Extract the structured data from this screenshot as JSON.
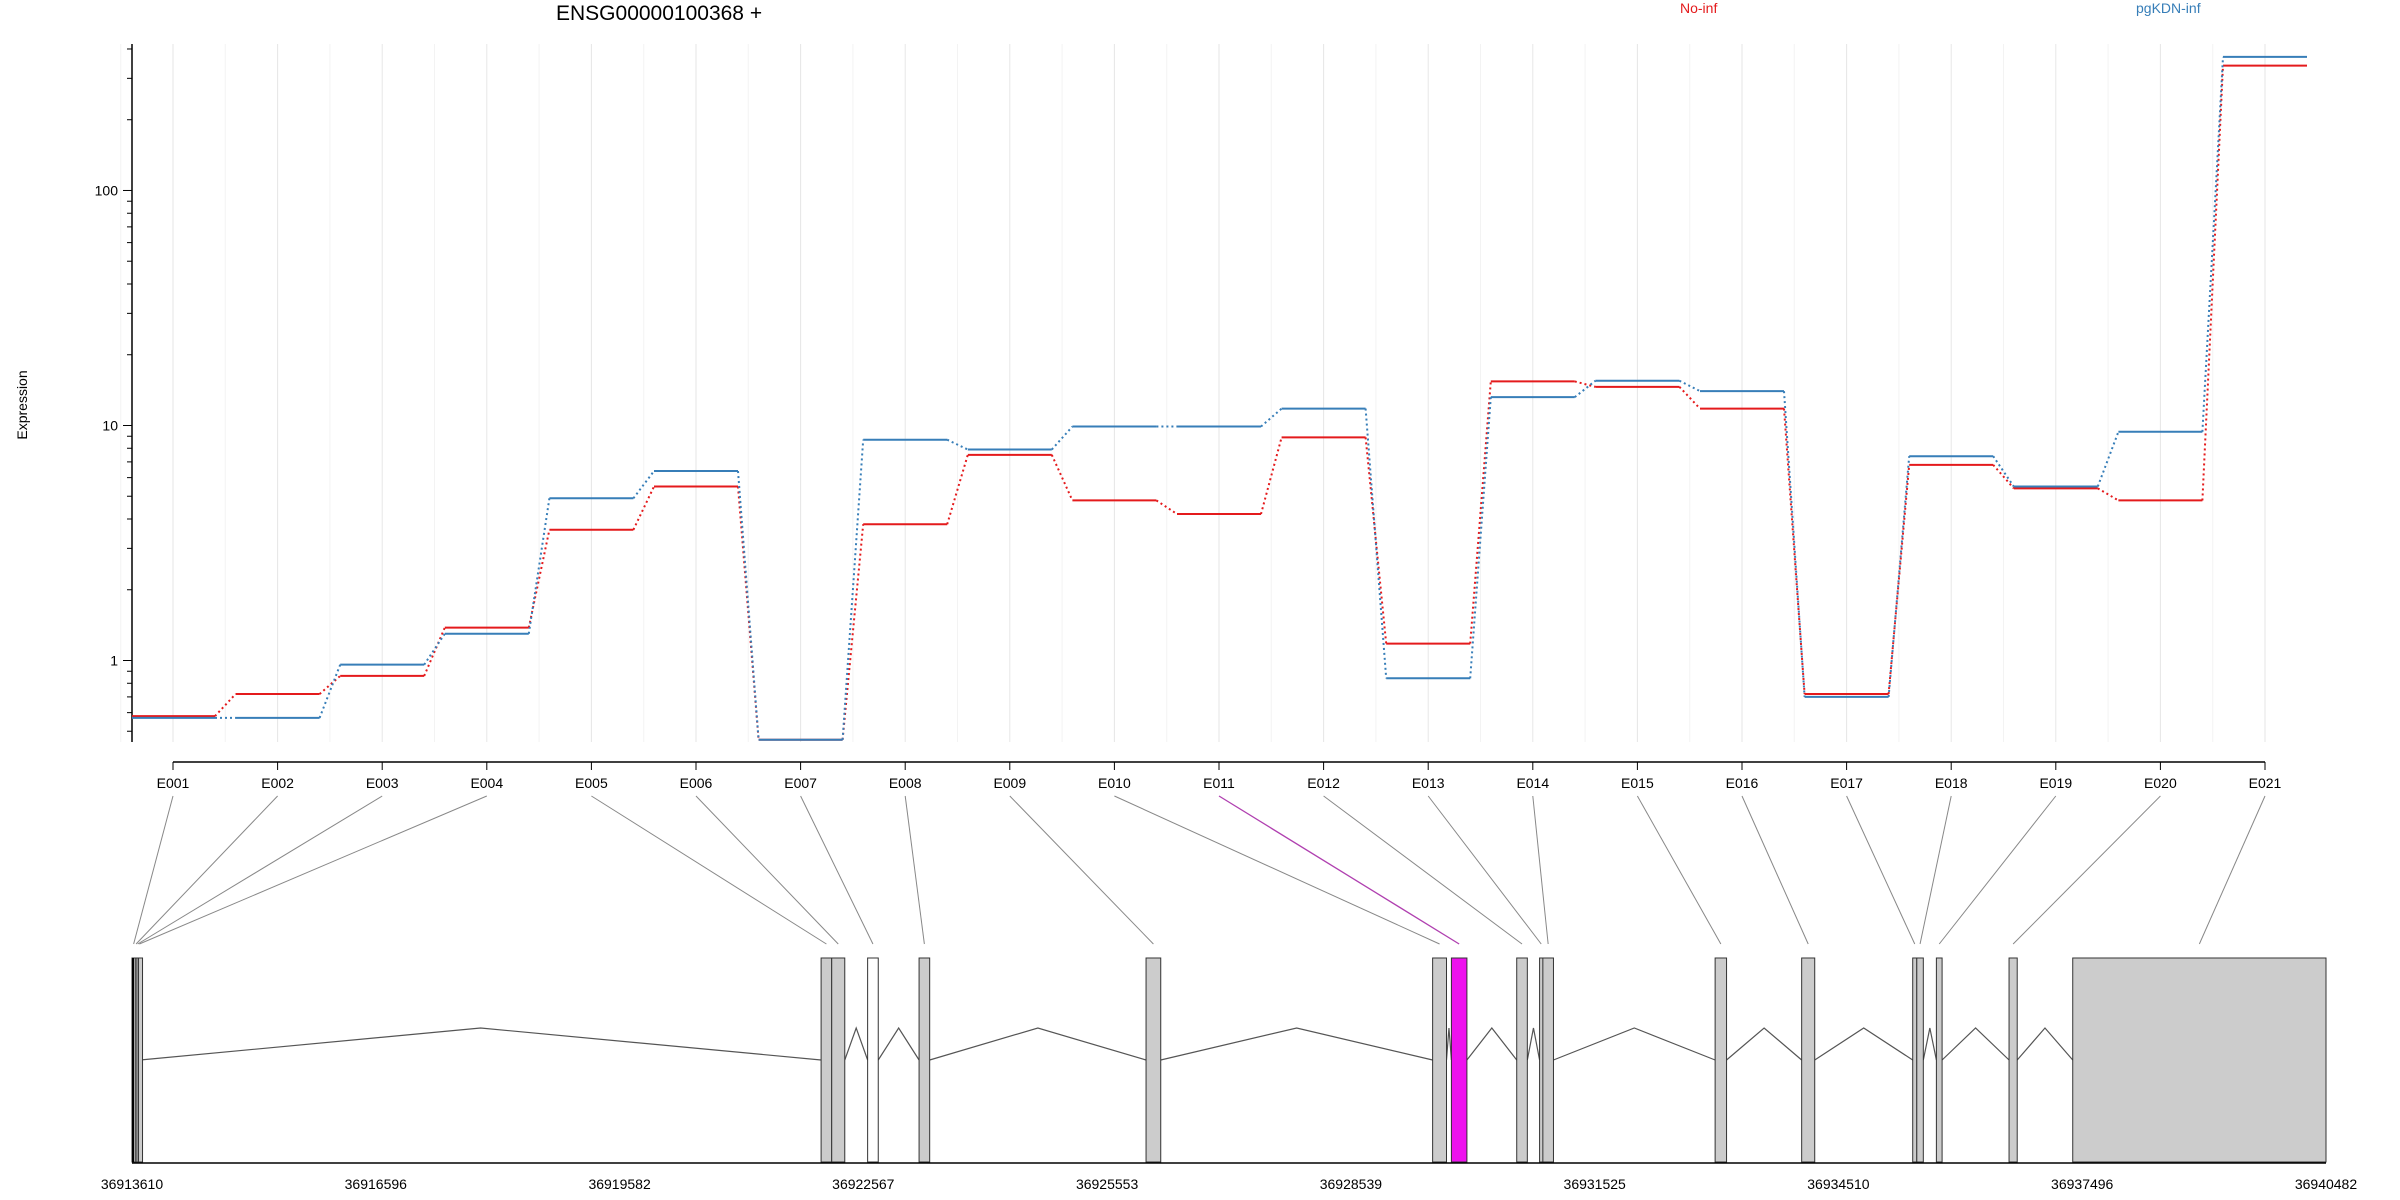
{
  "chart_data": {
    "type": "line",
    "title": "ENSG00000100368 +",
    "xlabel": "",
    "ylabel": "Expression",
    "y_scale": "log",
    "ylim": [
      0.45,
      420
    ],
    "y_ticks": [
      {
        "value": 1,
        "label": "1"
      },
      {
        "value": 10,
        "label": "10"
      },
      {
        "value": 100,
        "label": "100"
      }
    ],
    "grid": "vertical, light",
    "legend_placement": "top",
    "categories": [
      "E001",
      "E002",
      "E003",
      "E004",
      "E005",
      "E006",
      "E007",
      "E008",
      "E009",
      "E010",
      "E011",
      "E012",
      "E013",
      "E014",
      "E015",
      "E016",
      "E017",
      "E018",
      "E019",
      "E020",
      "E021"
    ],
    "series": [
      {
        "name": "No-inf",
        "color": "#e41a1c",
        "values": [
          0.58,
          0.72,
          0.86,
          1.38,
          3.6,
          5.5,
          0.46,
          3.8,
          7.5,
          4.8,
          4.2,
          8.9,
          1.18,
          15.4,
          14.6,
          11.8,
          0.72,
          6.8,
          5.4,
          4.8,
          340
        ]
      },
      {
        "name": "pgKDN-inf",
        "color": "#377eb8",
        "values": [
          0.57,
          0.57,
          0.96,
          1.3,
          4.9,
          6.4,
          0.46,
          8.7,
          7.9,
          9.9,
          9.9,
          11.8,
          0.84,
          13.2,
          15.5,
          14.0,
          0.7,
          7.4,
          5.5,
          9.4,
          370
        ]
      }
    ],
    "gene_model": {
      "genomic_range": [
        36913610,
        36940482
      ],
      "coordinate_ticks": [
        36913610,
        36916596,
        36919582,
        36922567,
        36925553,
        36928539,
        36931525,
        36934510,
        36937496,
        36940482
      ],
      "highlight_color": "#ee11ee",
      "exons": [
        {
          "id": "E001",
          "start": 36913610,
          "end": 36913650,
          "fill": "gray"
        },
        {
          "id": "E002",
          "start": 36913650,
          "end": 36913670,
          "fill": "gray"
        },
        {
          "id": "E003",
          "start": 36913670,
          "end": 36913690,
          "fill": "gray"
        },
        {
          "id": "E004",
          "start": 36913690,
          "end": 36913710,
          "fill": "gray"
        },
        {
          "id": "E005",
          "start": 36922050,
          "end": 36922180,
          "fill": "gray"
        },
        {
          "id": "E006",
          "start": 36922180,
          "end": 36922340,
          "fill": "gray"
        },
        {
          "id": "E007",
          "start": 36922620,
          "end": 36922750,
          "fill": "white"
        },
        {
          "id": "E008",
          "start": 36923250,
          "end": 36923380,
          "fill": "gray"
        },
        {
          "id": "E009",
          "start": 36926030,
          "end": 36926210,
          "fill": "gray"
        },
        {
          "id": "E010",
          "start": 36929540,
          "end": 36929710,
          "fill": "gray"
        },
        {
          "id": "E011",
          "start": 36929770,
          "end": 36929960,
          "fill": "highlight"
        },
        {
          "id": "E012",
          "start": 36930570,
          "end": 36930700,
          "fill": "gray"
        },
        {
          "id": "E013",
          "start": 36930850,
          "end": 36930890,
          "fill": "gray"
        },
        {
          "id": "E014",
          "start": 36930890,
          "end": 36931020,
          "fill": "gray"
        },
        {
          "id": "E015",
          "start": 36933000,
          "end": 36933140,
          "fill": "gray"
        },
        {
          "id": "E016",
          "start": 36934060,
          "end": 36934220,
          "fill": "gray"
        },
        {
          "id": "E017",
          "start": 36935420,
          "end": 36935470,
          "fill": "gray"
        },
        {
          "id": "E018",
          "start": 36935470,
          "end": 36935550,
          "fill": "gray"
        },
        {
          "id": "E019",
          "start": 36935710,
          "end": 36935780,
          "fill": "gray"
        },
        {
          "id": "E020",
          "start": 36936600,
          "end": 36936700,
          "fill": "gray"
        },
        {
          "id": "E021",
          "start": 36937380,
          "end": 36940482,
          "fill": "gray"
        }
      ]
    }
  }
}
